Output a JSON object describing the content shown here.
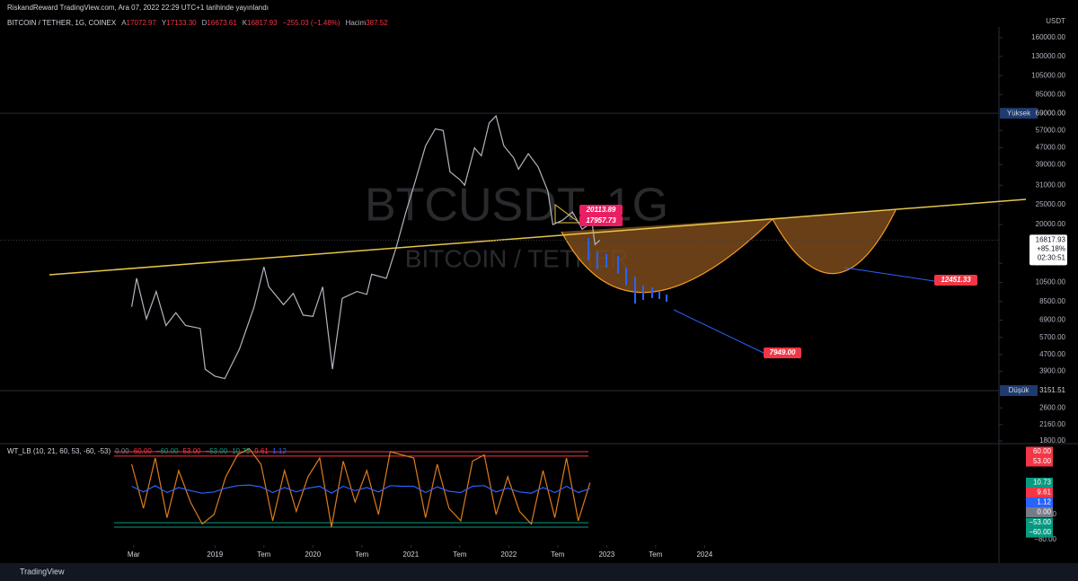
{
  "header": {
    "publisher": "RiskandReward TradingView.com, Ara 07, 2022 22:29 UTC+1 tarihinde yayınlandı",
    "symbol": "BITCOIN / TETHER, 1G, COINEX",
    "ohlc": [
      {
        "label": "A",
        "value": "17072.97"
      },
      {
        "label": "Y",
        "value": "17133.30"
      },
      {
        "label": "D",
        "value": "16673.61"
      },
      {
        "label": "K",
        "value": "16817.93"
      }
    ],
    "change": "−255.03 (−1.48%)",
    "volume": {
      "label": "Hacim",
      "value": "387.52"
    }
  },
  "watermark": {
    "ticker": "BTCUSDT, 1G",
    "name": "BITCOIN / TETHER"
  },
  "currency": "USDT",
  "footer": "TradingView",
  "chart_data": [
    {
      "type": "line",
      "log_scale": true,
      "x": [
        2018.15,
        2018.2,
        2018.3,
        2018.4,
        2018.5,
        2018.6,
        2018.7,
        2018.85,
        2018.9,
        2019.0,
        2019.1,
        2019.25,
        2019.4,
        2019.5,
        2019.55,
        2019.7,
        2019.8,
        2019.9,
        2020.0,
        2020.1,
        2020.2,
        2020.3,
        2020.45,
        2020.55,
        2020.6,
        2020.75,
        2020.85,
        2020.95,
        2021.05,
        2021.15,
        2021.25,
        2021.33,
        2021.4,
        2021.5,
        2021.55,
        2021.65,
        2021.72,
        2021.8,
        2021.87,
        2021.95,
        2022.05,
        2022.1,
        2022.2,
        2022.3,
        2022.4,
        2022.45,
        2022.55,
        2022.65,
        2022.75,
        2022.85,
        2022.88,
        2022.93
      ],
      "series": [
        {
          "color": "#b2b5be",
          "values": [
            8000,
            11000,
            7000,
            9500,
            6500,
            7500,
            6500,
            6300,
            4000,
            3700,
            3600,
            5000,
            8000,
            12500,
            10000,
            8200,
            9300,
            7300,
            7200,
            10000,
            4000,
            8800,
            9500,
            9200,
            11500,
            11000,
            15500,
            23000,
            33000,
            48000,
            58000,
            57000,
            36000,
            33000,
            31000,
            47000,
            43000,
            62000,
            67000,
            48000,
            42000,
            37000,
            44000,
            38000,
            29000,
            20000,
            21000,
            23000,
            19000,
            20500,
            16000,
            16800
          ]
        }
      ],
      "xlim": [
        2017.97,
        2027.4
      ],
      "xticks": [
        {
          "value": 2018.17,
          "label": "Mar"
        },
        2019,
        {
          "value": 2019.5,
          "label": "Tem"
        },
        2020,
        {
          "value": 2020.5,
          "label": "Tem"
        },
        2021,
        {
          "value": 2021.5,
          "label": "Tem"
        },
        2022,
        {
          "value": 2022.5,
          "label": "Tem"
        },
        2023,
        {
          "value": 2023.5,
          "label": "Tem"
        },
        2024
      ],
      "ylim": [
        1800,
        160000
      ],
      "yticks": [
        {
          "value": 160000,
          "label": "160000.00"
        },
        {
          "value": 130000,
          "label": "130000.00"
        },
        {
          "value": 105000,
          "label": "105000.00"
        },
        {
          "value": 85000,
          "label": "85000.00"
        },
        {
          "value": 57000,
          "label": "57000.00"
        },
        {
          "value": 47000,
          "label": "47000.00"
        },
        {
          "value": 39000,
          "label": "39000.00"
        },
        {
          "value": 31000,
          "label": "31000.00"
        },
        {
          "value": 25000,
          "label": "25000.00"
        },
        {
          "value": 20000,
          "label": "20000.00"
        },
        {
          "value": 13000,
          "label": "13000.00"
        },
        {
          "value": 10500,
          "label": "10500.00"
        },
        {
          "value": 8500,
          "label": "8500.00"
        },
        {
          "value": 6900,
          "label": "6900.00"
        },
        {
          "value": 5700,
          "label": "5700.00"
        },
        {
          "value": 4700,
          "label": "4700.00"
        },
        {
          "value": 3900,
          "label": "3900.00"
        },
        {
          "value": 2600,
          "label": "2600.00"
        },
        {
          "value": 2160,
          "label": "2160.00"
        },
        {
          "value": 1800,
          "label": "1800.00"
        }
      ],
      "extremes": [
        {
          "label": "Yüksek",
          "value": "69000.00"
        },
        {
          "label": "Düşük",
          "value": "3151.51"
        }
      ],
      "last_price": [
        "16817.93",
        "+85.18%",
        "02:30:51"
      ],
      "annotations": [
        "20113.89",
        "17957.73",
        "12451.33",
        "7949.00"
      ]
    },
    {
      "type": "line",
      "title": "WT_LB (10, 21, 60, 53, -60, -53)",
      "legend_values": [
        {
          "text": "0.00",
          "color": "#787b86"
        },
        {
          "text": "60.00",
          "color": "#f23645"
        },
        {
          "text": "−60.00",
          "color": "#089981"
        },
        {
          "text": "53.00",
          "color": "#f23645"
        },
        {
          "text": "−53.00",
          "color": "#089981"
        },
        {
          "text": "10.73",
          "color": "#089981"
        },
        {
          "text": "9.61",
          "color": "#f23645"
        },
        {
          "text": "1.12",
          "color": "#2962ff"
        }
      ],
      "x": [
        2018.15,
        2018.27,
        2018.39,
        2018.51,
        2018.63,
        2018.75,
        2018.87,
        2018.99,
        2019.11,
        2019.23,
        2019.35,
        2019.47,
        2019.59,
        2019.71,
        2019.83,
        2019.95,
        2020.07,
        2020.19,
        2020.31,
        2020.43,
        2020.55,
        2020.67,
        2020.79,
        2020.91,
        2021.03,
        2021.15,
        2021.27,
        2021.39,
        2021.51,
        2021.63,
        2021.75,
        2021.87,
        2021.99,
        2022.11,
        2022.23,
        2022.35,
        2022.47,
        2022.59,
        2022.71,
        2022.83
      ],
      "series": [
        {
          "color": "#e07b1a",
          "values": [
            40,
            -30,
            50,
            -45,
            30,
            -20,
            -55,
            -40,
            20,
            55,
            65,
            40,
            -50,
            30,
            -35,
            20,
            50,
            -60,
            45,
            -20,
            30,
            -40,
            60,
            55,
            50,
            -45,
            40,
            -30,
            -50,
            45,
            55,
            -40,
            20,
            -35,
            -55,
            30,
            -45,
            50,
            -50,
            10.73
          ]
        },
        {
          "color": "#2962ff",
          "values": [
            5,
            -4,
            6,
            -5,
            3,
            -2,
            -6,
            -4,
            2,
            6,
            7,
            4,
            -5,
            3,
            -4,
            2,
            5,
            -6,
            5,
            -2,
            3,
            -4,
            6,
            5,
            5,
            -5,
            4,
            -3,
            -5,
            5,
            6,
            -4,
            2,
            -4,
            -6,
            3,
            -5,
            5,
            -5,
            1.12
          ]
        }
      ],
      "ylim": [
        -80,
        80
      ],
      "levels": [
        {
          "value": 60,
          "color": "#f23645"
        },
        {
          "value": 53,
          "color": "#f23645"
        },
        {
          "value": -53,
          "color": "#089981"
        },
        {
          "value": -60,
          "color": "#089981"
        }
      ],
      "yticks": [
        {
          "value": -40,
          "label": "−40.00"
        },
        {
          "value": -80,
          "label": "−80.00"
        }
      ],
      "value_tags": [
        {
          "value": 60,
          "label": "60.00",
          "color": "#f23645"
        },
        {
          "value": 53,
          "label": "53.00",
          "color": "#f23645"
        },
        {
          "value": 10.73,
          "label": "10.73",
          "color": "#089981"
        },
        {
          "value": 9.61,
          "label": "9.61",
          "color": "#f23645"
        },
        {
          "value": 1.12,
          "label": "1.12",
          "color": "#2962ff"
        },
        {
          "value": 0,
          "label": "0.00",
          "color": "#787b86"
        },
        {
          "value": -53,
          "label": "−53.00",
          "color": "#089981"
        },
        {
          "value": -60,
          "label": "−60.00",
          "color": "#089981"
        }
      ]
    }
  ]
}
